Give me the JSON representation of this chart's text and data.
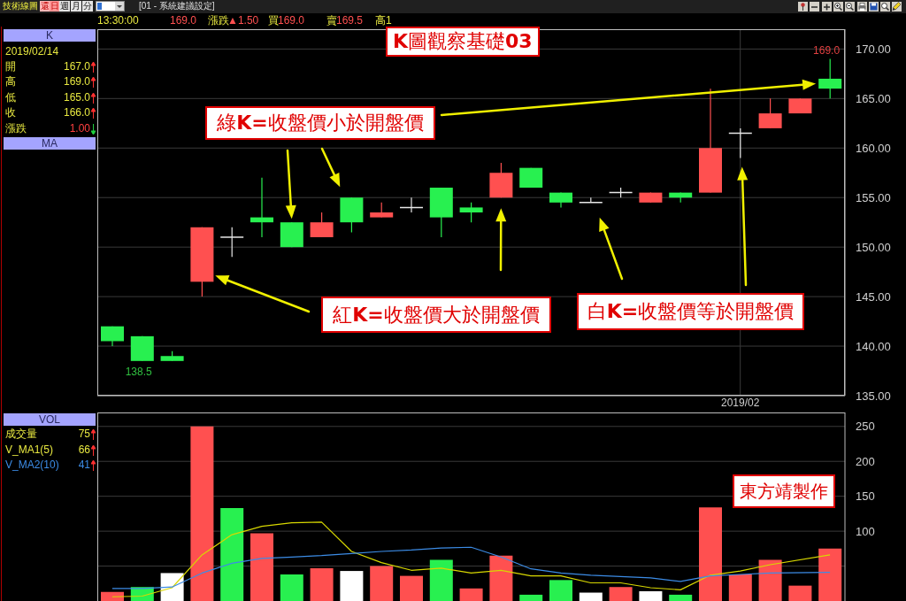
{
  "chart_data": [
    {
      "type": "other",
      "annotations": [
        "技術線圖",
        "還",
        "日",
        "週",
        "月",
        "分",
        "[01 - 系統建議設定]",
        "13:30:00",
        "169.0",
        "漲跌",
        "▲1.50",
        "買",
        "169.0",
        "賣",
        "169.5",
        "高1"
      ]
    },
    {
      "type": "other",
      "title": "K",
      "annotations": [
        "2019/02/14",
        "開",
        "167.0",
        "高",
        "169.0",
        "低",
        "165.0",
        "收",
        "166.0",
        "漲跌",
        "1.00"
      ]
    },
    {
      "type": "other",
      "title": "MA"
    },
    {
      "type": "candlestick",
      "title": "K圖觀察基礎03",
      "categories": [
        null,
        null,
        null,
        null,
        null,
        null,
        null,
        null,
        null,
        null,
        null,
        null,
        null,
        null,
        null,
        null,
        null,
        null,
        null,
        null,
        null,
        "2019/02",
        null,
        null,
        null
      ],
      "ohlc": [
        [
          142.0,
          142.0,
          140.0,
          140.5
        ],
        [
          141.0,
          141.0,
          138.5,
          138.5
        ],
        [
          139.0,
          139.5,
          138.5,
          138.5
        ],
        [
          146.5,
          152.0,
          145.0,
          152.0
        ],
        [
          151.0,
          152.0,
          149.0,
          151.0
        ],
        [
          153.0,
          157.0,
          151.0,
          152.5
        ],
        [
          152.5,
          152.5,
          150.0,
          150.0
        ],
        [
          151.0,
          153.5,
          151.0,
          152.5
        ],
        [
          155.0,
          155.0,
          151.5,
          152.5
        ],
        [
          153.0,
          154.5,
          153.0,
          153.5
        ],
        [
          154.0,
          155.0,
          153.5,
          154.0
        ],
        [
          156.0,
          156.0,
          151.0,
          153.0
        ],
        [
          154.0,
          154.5,
          152.5,
          153.5
        ],
        [
          155.0,
          158.5,
          155.0,
          157.5
        ],
        [
          158.0,
          158.0,
          156.0,
          156.0
        ],
        [
          155.5,
          155.5,
          154.0,
          154.5
        ],
        [
          154.5,
          155.0,
          154.5,
          154.5
        ],
        [
          155.5,
          156.0,
          155.0,
          155.5
        ],
        [
          154.5,
          155.5,
          154.5,
          155.5
        ],
        [
          155.5,
          155.5,
          154.5,
          155.0
        ],
        [
          155.5,
          166.0,
          155.5,
          160.0
        ],
        [
          161.5,
          162.0,
          159.0,
          161.5
        ],
        [
          162.0,
          165.0,
          162.0,
          163.5
        ],
        [
          163.5,
          165.0,
          163.5,
          165.0
        ],
        [
          167.0,
          169.0,
          165.0,
          166.0
        ]
      ],
      "colors": [
        "#28f050",
        "#28f050",
        "#28f050",
        "#ff5050",
        "#e8e8e8",
        "#28f050",
        "#28f050",
        "#ff5050",
        "#28f050",
        "#ff5050",
        "#e8e8e8",
        "#28f050",
        "#28f050",
        "#ff5050",
        "#28f050",
        "#28f050",
        "#e8e8e8",
        "#e8e8e8",
        "#ff5050",
        "#28f050",
        "#ff5050",
        "#e8e8e8",
        "#ff5050",
        "#ff5050",
        "#28f050"
      ],
      "ylim": [
        135,
        172
      ],
      "yticks": [
        {
          "value": 135,
          "label": "135.00"
        },
        {
          "value": 140,
          "label": "140.00"
        },
        {
          "value": 145,
          "label": "145.00"
        },
        {
          "value": 150,
          "label": "150.00"
        },
        {
          "value": 155,
          "label": "155.00"
        },
        {
          "value": 160,
          "label": "160.00"
        },
        {
          "value": 165,
          "label": "165.00"
        },
        {
          "value": 170,
          "label": "170.00"
        }
      ],
      "grid": true,
      "annotations": [
        "綠K=收盤價小於開盤價",
        "紅K=收盤價大於開盤價",
        "白K=收盤價等於開盤價",
        {
          "text": "169.0",
          "y": 169
        },
        {
          "text": "138.5",
          "y": 138.5
        }
      ]
    },
    {
      "type": "other",
      "title": "VOL",
      "annotations": [
        "成交量",
        "75",
        "V_MA1(5)",
        "66",
        "V_MA2(10)",
        "41"
      ]
    },
    {
      "type": "bar",
      "categories": [
        null,
        null,
        null,
        null,
        null,
        null,
        null,
        null,
        null,
        null,
        null,
        null,
        null,
        null,
        null,
        null,
        null,
        null,
        null,
        null,
        null,
        null,
        null,
        null,
        null
      ],
      "series": [
        {
          "type": "bar",
          "values": [
            13,
            20,
            40,
            250,
            133,
            97,
            38,
            47,
            43,
            50,
            36,
            59,
            18,
            65,
            9,
            30,
            12,
            20,
            14,
            9,
            134,
            38,
            59,
            22,
            75
          ],
          "colors": [
            "#ff5050",
            "#28f050",
            "#ffffff",
            "#ff5050",
            "#28f050",
            "#ff5050",
            "#28f050",
            "#ff5050",
            "#ffffff",
            "#ff5050",
            "#ff5050",
            "#28f050",
            "#ff5050",
            "#ff5050",
            "#28f050",
            "#28f050",
            "#ffffff",
            "#ff5050",
            "#ffffff",
            "#28f050",
            "#ff5050",
            "#ff5050",
            "#ff5050",
            "#ff5050",
            "#ff5050"
          ]
        },
        {
          "type": "line",
          "color": "#d8d800",
          "values": [
            6,
            7,
            19,
            66,
            95,
            107,
            112,
            113,
            71,
            55,
            44,
            47,
            40,
            44,
            36,
            36,
            26,
            26,
            19,
            16,
            37,
            43,
            52,
            null,
            66
          ]
        },
        {
          "type": "line",
          "color": "#3c8ce6",
          "values": [
            18,
            18,
            20,
            40,
            54,
            61,
            63,
            65,
            68,
            71,
            73,
            76,
            77,
            63,
            46,
            40,
            37,
            35,
            33,
            28,
            36,
            38,
            40,
            null,
            41
          ]
        }
      ],
      "ylim": [
        0,
        270
      ],
      "yticks": [
        {
          "value": 50,
          "label": null
        },
        100,
        150,
        200,
        250
      ],
      "grid": "y",
      "tick_labels": "y",
      "annotations": [
        "東方靖製作"
      ]
    }
  ]
}
